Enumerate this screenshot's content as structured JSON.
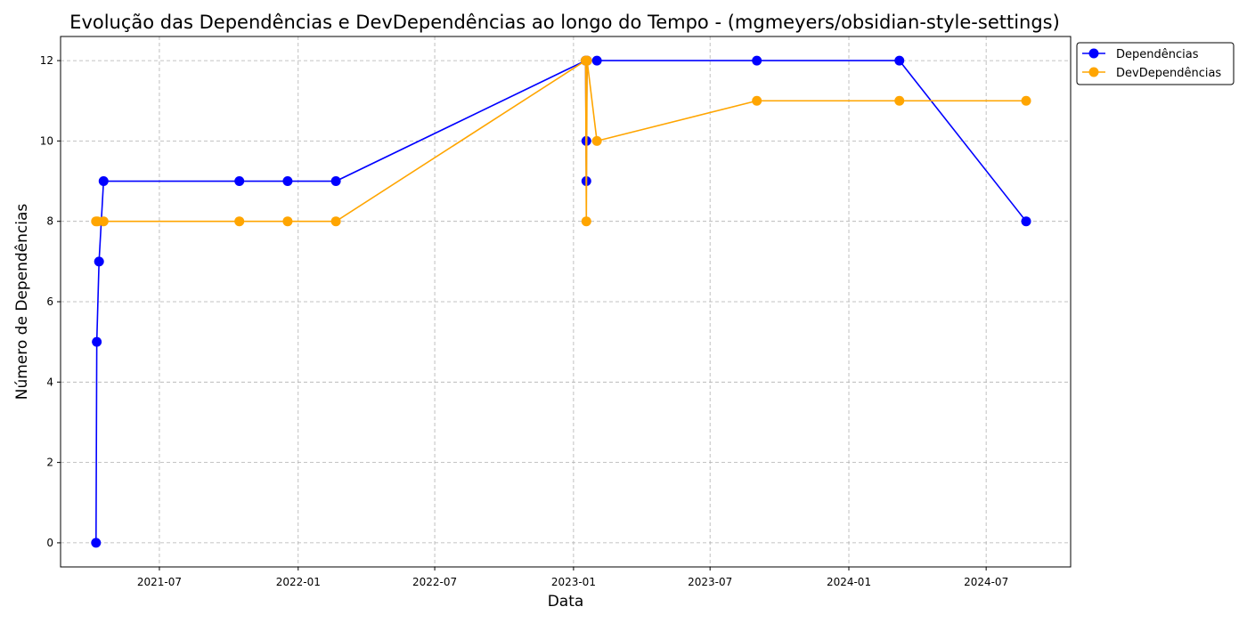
{
  "chart_data": {
    "type": "line",
    "title": "Evolução das Dependências e DevDependências ao longo do Tempo - (mgmeyers/obsidian-style-settings)",
    "xlabel": "Data",
    "ylabel": "Número de Dependências",
    "ylim": [
      -0.6,
      12.6
    ],
    "xlim": [
      "2021-02-20",
      "2024-10-21"
    ],
    "x_ticks": [
      {
        "date": "2021-07-01",
        "label": "2021-07"
      },
      {
        "date": "2022-01-01",
        "label": "2022-01"
      },
      {
        "date": "2022-07-01",
        "label": "2022-07"
      },
      {
        "date": "2023-01-01",
        "label": "2023-01"
      },
      {
        "date": "2023-07-01",
        "label": "2023-07"
      },
      {
        "date": "2024-01-01",
        "label": "2024-01"
      },
      {
        "date": "2024-07-01",
        "label": "2024-07"
      }
    ],
    "y_ticks": [
      0,
      2,
      4,
      6,
      8,
      10,
      12
    ],
    "grid": true,
    "legend_position": "outside-top-right",
    "series": [
      {
        "name": "Dependências",
        "color": "#0000ff",
        "points": [
          {
            "x": "2021-04-08",
            "y": 0
          },
          {
            "x": "2021-04-09",
            "y": 5
          },
          {
            "x": "2021-04-12",
            "y": 7
          },
          {
            "x": "2021-04-18",
            "y": 9
          },
          {
            "x": "2021-10-15",
            "y": 9
          },
          {
            "x": "2021-12-18",
            "y": 9
          },
          {
            "x": "2022-02-20",
            "y": 9
          },
          {
            "x": "2023-01-17",
            "y": 12
          },
          {
            "x": "2023-01-18",
            "y": 9
          },
          {
            "x": "2023-01-18",
            "y": 10
          },
          {
            "x": "2023-01-19",
            "y": 12
          },
          {
            "x": "2023-02-01",
            "y": 12
          },
          {
            "x": "2023-09-01",
            "y": 12
          },
          {
            "x": "2024-03-08",
            "y": 12
          },
          {
            "x": "2024-08-23",
            "y": 8
          }
        ]
      },
      {
        "name": "DevDependências",
        "color": "#ffa500",
        "points": [
          {
            "x": "2021-04-08",
            "y": 8
          },
          {
            "x": "2021-04-10",
            "y": 8
          },
          {
            "x": "2021-04-18",
            "y": 8
          },
          {
            "x": "2021-10-15",
            "y": 8
          },
          {
            "x": "2021-12-18",
            "y": 8
          },
          {
            "x": "2022-02-20",
            "y": 8
          },
          {
            "x": "2023-01-17",
            "y": 12
          },
          {
            "x": "2023-01-18",
            "y": 8
          },
          {
            "x": "2023-01-19",
            "y": 12
          },
          {
            "x": "2023-02-01",
            "y": 10
          },
          {
            "x": "2023-09-01",
            "y": 11
          },
          {
            "x": "2024-03-08",
            "y": 11
          },
          {
            "x": "2024-08-23",
            "y": 11
          }
        ]
      }
    ]
  }
}
